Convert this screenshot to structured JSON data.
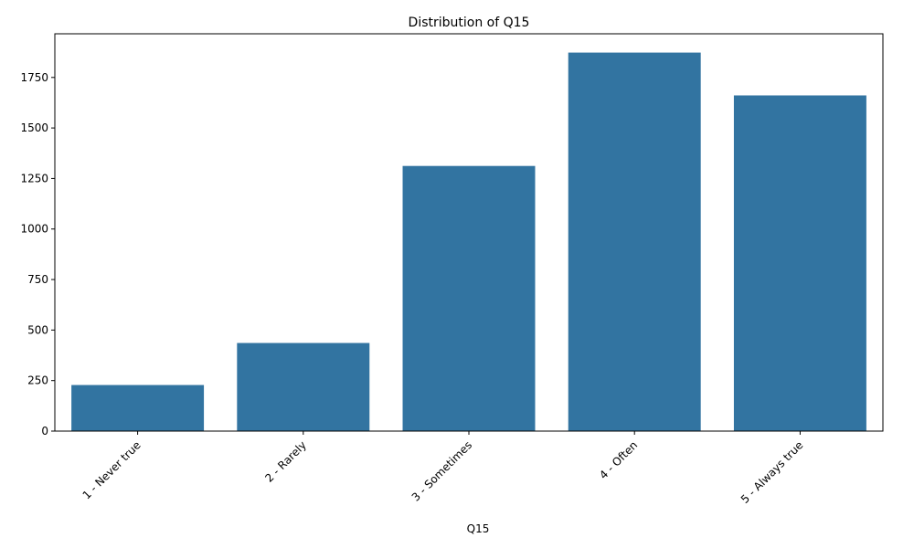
{
  "chart_data": {
    "type": "bar",
    "title": "Distribution of Q15",
    "xlabel": "Q15",
    "ylabel": "",
    "categories": [
      "1 - Never true",
      "2 - Rarely",
      "3 - Sometimes",
      "4 - Often",
      "5 - Always true"
    ],
    "values": [
      228,
      436,
      1312,
      1873,
      1661
    ],
    "ylim": [
      0,
      1966
    ],
    "yticks": [
      0,
      250,
      500,
      750,
      1000,
      1250,
      1500,
      1750
    ],
    "bar_color": "#3274a1",
    "grid": false,
    "legend": "none"
  }
}
